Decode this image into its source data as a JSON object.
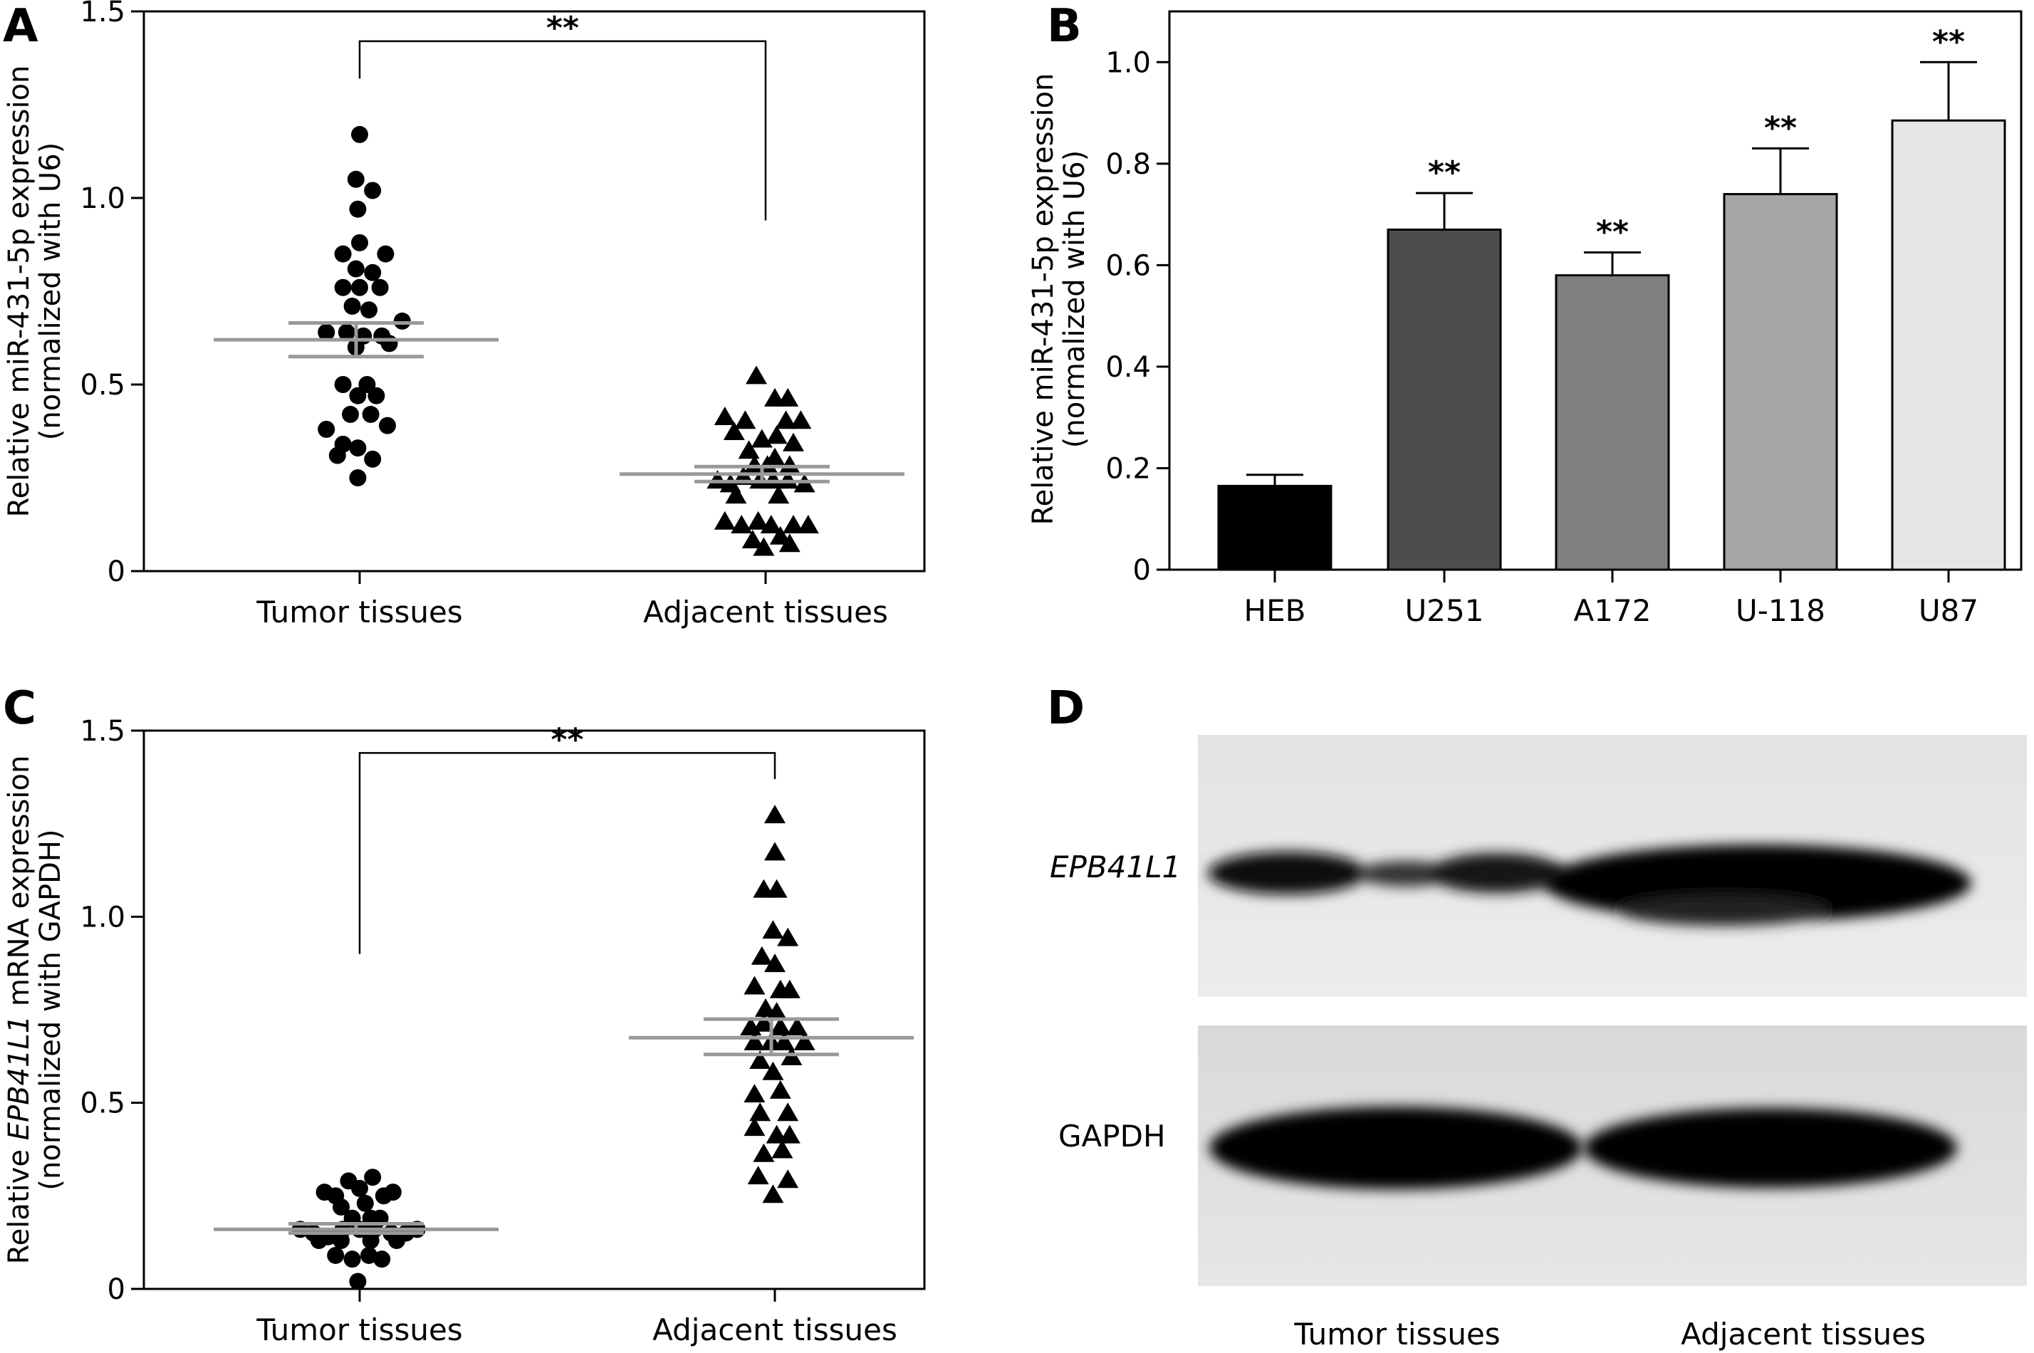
{
  "panels": {
    "A": {
      "letter": "A"
    },
    "B": {
      "letter": "B"
    },
    "C": {
      "letter": "C"
    },
    "D": {
      "letter": "D"
    }
  },
  "chart_data": [
    {
      "id": "A",
      "type": "scatter",
      "ylabel_line1": "Relative miR-431-5p expression",
      "ylabel_line2": "(normalized with U6)",
      "xlabel": "",
      "ylim": [
        0,
        1.5
      ],
      "yticks": [
        "0",
        "0.5",
        "1.0",
        "1.5"
      ],
      "categories": [
        "Tumor tissues",
        "Adjacent tissues"
      ],
      "significance": "**",
      "colors": {
        "points": "#000000",
        "summary": "#999999"
      },
      "series": [
        {
          "category": "Tumor tissues",
          "marker": "circle",
          "mean": 0.62,
          "sem_low": 0.575,
          "sem_high": 0.665,
          "points": [
            [
              0.0,
              1.17
            ],
            [
              -0.02,
              1.05
            ],
            [
              0.07,
              1.02
            ],
            [
              -0.01,
              0.97
            ],
            [
              -0.09,
              0.85
            ],
            [
              0.14,
              0.85
            ],
            [
              0.0,
              0.88
            ],
            [
              -0.02,
              0.81
            ],
            [
              0.07,
              0.8
            ],
            [
              -0.09,
              0.76
            ],
            [
              0.0,
              0.76
            ],
            [
              0.11,
              0.76
            ],
            [
              -0.04,
              0.71
            ],
            [
              0.05,
              0.7
            ],
            [
              0.23,
              0.67
            ],
            [
              -0.18,
              0.64
            ],
            [
              -0.07,
              0.64
            ],
            [
              0.02,
              0.63
            ],
            [
              0.12,
              0.63
            ],
            [
              -0.02,
              0.6
            ],
            [
              0.16,
              0.61
            ],
            [
              -0.09,
              0.5
            ],
            [
              0.04,
              0.5
            ],
            [
              -0.01,
              0.47
            ],
            [
              0.09,
              0.47
            ],
            [
              -0.05,
              0.42
            ],
            [
              0.06,
              0.42
            ],
            [
              -0.18,
              0.38
            ],
            [
              0.15,
              0.39
            ],
            [
              -0.09,
              0.34
            ],
            [
              -0.01,
              0.33
            ],
            [
              -0.12,
              0.31
            ],
            [
              0.07,
              0.3
            ],
            [
              -0.01,
              0.25
            ]
          ]
        },
        {
          "category": "Adjacent tissues",
          "marker": "triangle",
          "mean": 0.26,
          "sem_low": 0.24,
          "sem_high": 0.28,
          "points": [
            [
              -0.05,
              0.52
            ],
            [
              0.05,
              0.46
            ],
            [
              0.12,
              0.46
            ],
            [
              -0.22,
              0.41
            ],
            [
              -0.11,
              0.4
            ],
            [
              0.11,
              0.4
            ],
            [
              0.19,
              0.4
            ],
            [
              -0.17,
              0.37
            ],
            [
              -0.02,
              0.35
            ],
            [
              0.06,
              0.36
            ],
            [
              -0.09,
              0.32
            ],
            [
              0.15,
              0.34
            ],
            [
              0.05,
              0.3
            ],
            [
              -0.06,
              0.28
            ],
            [
              0.01,
              0.28
            ],
            [
              0.13,
              0.28
            ],
            [
              -0.26,
              0.24
            ],
            [
              -0.19,
              0.23
            ],
            [
              -0.12,
              0.25
            ],
            [
              -0.03,
              0.24
            ],
            [
              0.04,
              0.24
            ],
            [
              0.12,
              0.24
            ],
            [
              0.21,
              0.23
            ],
            [
              -0.16,
              0.2
            ],
            [
              0.07,
              0.2
            ],
            [
              -0.22,
              0.13
            ],
            [
              -0.13,
              0.12
            ],
            [
              -0.04,
              0.13
            ],
            [
              0.03,
              0.12
            ],
            [
              0.15,
              0.12
            ],
            [
              0.23,
              0.12
            ],
            [
              -0.07,
              0.08
            ],
            [
              0.08,
              0.09
            ],
            [
              -0.01,
              0.06
            ],
            [
              0.13,
              0.07
            ]
          ]
        }
      ],
      "bracket_left_y": 1.32,
      "bracket_right_y": 0.94,
      "bracket_top_y": 1.42
    },
    {
      "id": "B",
      "type": "bar",
      "ylabel_line1": "Relative miR-431-5p expression",
      "ylabel_line2": "(normalized with U6)",
      "xlabel": "",
      "ylim": [
        0,
        1.1
      ],
      "yticks": [
        "0",
        "0.2",
        "0.4",
        "0.6",
        "0.8",
        "1.0"
      ],
      "categories": [
        "HEB",
        "U251",
        "A172",
        "U-118",
        "U87"
      ],
      "values": [
        0.165,
        0.67,
        0.58,
        0.74,
        0.885
      ],
      "errors": [
        0.022,
        0.072,
        0.045,
        0.09,
        0.115
      ],
      "significance": [
        "",
        "**",
        "**",
        "**",
        "**"
      ],
      "colors": [
        "#000000",
        "#4d4d4d",
        "#7f7f7f",
        "#a6a6a6",
        "#e5e5e5"
      ]
    },
    {
      "id": "C",
      "type": "scatter",
      "ylabel_pre": "Relative ",
      "ylabel_italic": "EPB41L1",
      "ylabel_post": " mRNA expression",
      "ylabel_line2": "(normalized with GAPDH)",
      "xlabel": "",
      "ylim": [
        0,
        1.5
      ],
      "yticks": [
        "0",
        "0.5",
        "1.0",
        "1.5"
      ],
      "categories": [
        "Tumor tissues",
        "Adjacent tissues"
      ],
      "significance": "**",
      "colors": {
        "points": "#000000",
        "summary": "#999999"
      },
      "series": [
        {
          "category": "Tumor tissues",
          "marker": "circle",
          "mean": 0.16,
          "sem_low": 0.15,
          "sem_high": 0.175,
          "points": [
            [
              0.07,
              0.3
            ],
            [
              -0.06,
              0.29
            ],
            [
              -0.19,
              0.26
            ],
            [
              -0.13,
              0.25
            ],
            [
              0.0,
              0.27
            ],
            [
              0.13,
              0.25
            ],
            [
              0.18,
              0.26
            ],
            [
              -0.1,
              0.22
            ],
            [
              0.03,
              0.23
            ],
            [
              -0.04,
              0.19
            ],
            [
              0.06,
              0.19
            ],
            [
              0.11,
              0.19
            ],
            [
              -0.32,
              0.16
            ],
            [
              -0.25,
              0.15
            ],
            [
              -0.17,
              0.14
            ],
            [
              -0.09,
              0.16
            ],
            [
              0.0,
              0.16
            ],
            [
              0.08,
              0.16
            ],
            [
              0.17,
              0.15
            ],
            [
              0.25,
              0.15
            ],
            [
              0.31,
              0.16
            ],
            [
              -0.22,
              0.13
            ],
            [
              -0.1,
              0.13
            ],
            [
              0.06,
              0.13
            ],
            [
              0.2,
              0.13
            ],
            [
              -0.13,
              0.09
            ],
            [
              -0.04,
              0.08
            ],
            [
              0.05,
              0.09
            ],
            [
              0.12,
              0.08
            ],
            [
              -0.01,
              0.02
            ]
          ]
        },
        {
          "category": "Adjacent tissues",
          "marker": "triangle",
          "mean": 0.675,
          "sem_low": 0.63,
          "sem_high": 0.725,
          "points": [
            [
              0.0,
              1.27
            ],
            [
              0.0,
              1.17
            ],
            [
              -0.06,
              1.07
            ],
            [
              0.01,
              1.07
            ],
            [
              -0.01,
              0.96
            ],
            [
              0.07,
              0.94
            ],
            [
              -0.07,
              0.89
            ],
            [
              0.0,
              0.87
            ],
            [
              -0.11,
              0.81
            ],
            [
              0.03,
              0.8
            ],
            [
              0.08,
              0.8
            ],
            [
              -0.05,
              0.75
            ],
            [
              0.01,
              0.74
            ],
            [
              -0.13,
              0.7
            ],
            [
              -0.06,
              0.71
            ],
            [
              0.03,
              0.7
            ],
            [
              0.12,
              0.7
            ],
            [
              -0.11,
              0.66
            ],
            [
              -0.02,
              0.66
            ],
            [
              0.05,
              0.66
            ],
            [
              0.16,
              0.66
            ],
            [
              -0.08,
              0.61
            ],
            [
              0.09,
              0.62
            ],
            [
              -0.01,
              0.58
            ],
            [
              -0.11,
              0.52
            ],
            [
              0.03,
              0.53
            ],
            [
              -0.08,
              0.47
            ],
            [
              0.07,
              0.47
            ],
            [
              -0.11,
              0.43
            ],
            [
              0.01,
              0.41
            ],
            [
              0.08,
              0.41
            ],
            [
              -0.06,
              0.36
            ],
            [
              0.04,
              0.37
            ],
            [
              -0.09,
              0.3
            ],
            [
              0.07,
              0.29
            ],
            [
              -0.01,
              0.25
            ]
          ]
        }
      ],
      "bracket_left_y": 0.9,
      "bracket_right_y": 1.37,
      "bracket_top_y": 1.44
    }
  ],
  "blot": {
    "protein_label": "EPB41L1",
    "loading_label": "GAPDH",
    "lanes": [
      "Tumor tissues",
      "Adjacent tissues"
    ]
  }
}
